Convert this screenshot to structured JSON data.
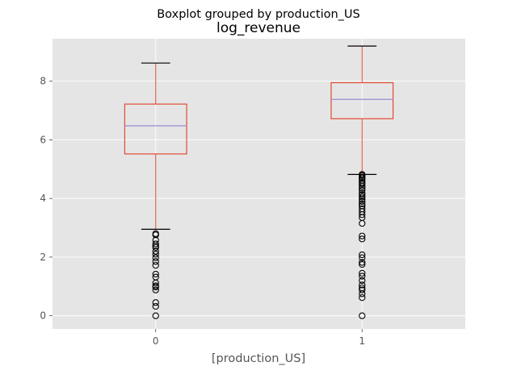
{
  "chart_data": {
    "type": "boxplot",
    "suptitle": "Boxplot grouped by production_US",
    "title": "log_revenue",
    "xlabel": "[production_US]",
    "ylabel": "",
    "ylim": [
      -0.45,
      9.45
    ],
    "yticks": [
      0,
      2,
      4,
      6,
      8
    ],
    "grid": true,
    "colors": {
      "background": "#e5e5e5",
      "grid": "#ffffff",
      "box": "#e24a33",
      "median": "#988ed5",
      "whisker_cap": "#000000",
      "flier": "#000000",
      "tick_text": "#555555"
    },
    "categories": [
      "0",
      "1"
    ],
    "boxes": [
      {
        "category": "0",
        "whisker_low": 2.95,
        "q1": 5.52,
        "median": 6.48,
        "q3": 7.22,
        "whisker_high": 8.62,
        "fliers": [
          2.8,
          2.76,
          2.58,
          2.45,
          2.38,
          2.33,
          2.2,
          2.1,
          1.98,
          1.85,
          1.72,
          1.42,
          1.32,
          1.12,
          1.02,
          0.98,
          0.88,
          0.45,
          0.32,
          0.0
        ]
      },
      {
        "category": "1",
        "whisker_low": 4.82,
        "q1": 6.72,
        "median": 7.38,
        "q3": 7.95,
        "whisker_high": 9.2,
        "fliers": [
          4.82,
          4.78,
          4.72,
          4.68,
          4.62,
          4.55,
          4.5,
          4.42,
          4.35,
          4.28,
          4.18,
          4.12,
          4.05,
          3.98,
          3.9,
          3.82,
          3.75,
          3.65,
          3.55,
          3.45,
          3.35,
          3.15,
          2.72,
          2.62,
          2.08,
          1.98,
          1.82,
          1.75,
          1.45,
          1.35,
          1.2,
          1.05,
          0.95,
          0.88,
          0.75,
          0.62,
          0.0
        ]
      }
    ]
  }
}
